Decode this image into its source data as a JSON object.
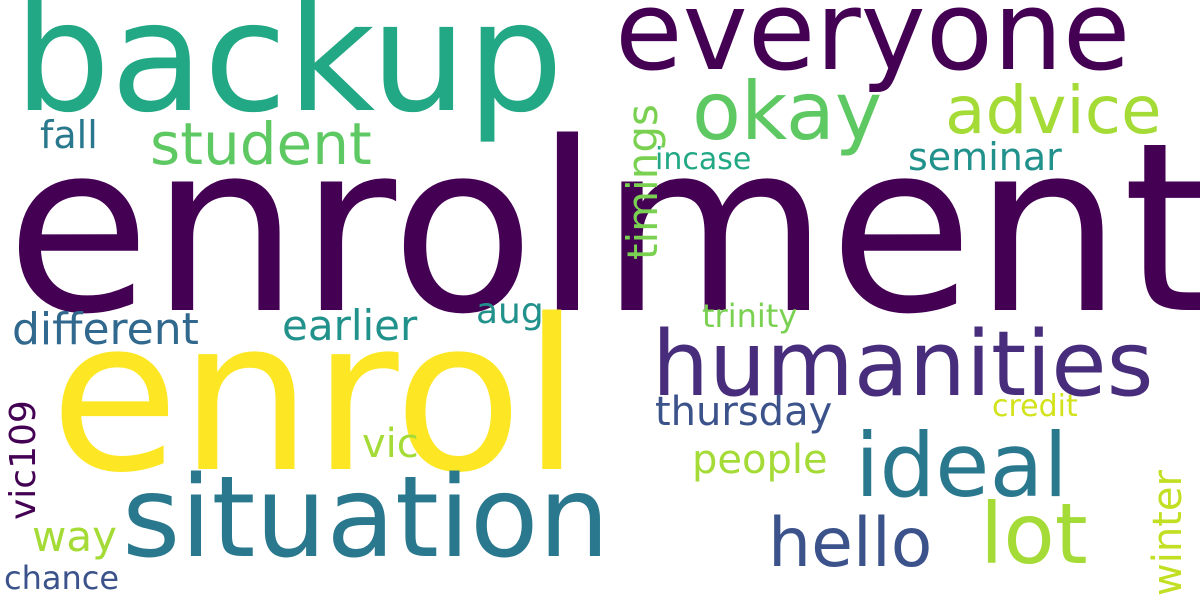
{
  "words": [
    {
      "id": "enrolment",
      "text": "enrolment",
      "color": "#440154"
    },
    {
      "id": "enrol",
      "text": "enrol",
      "color": "#fde725"
    },
    {
      "id": "backup",
      "text": "backup",
      "color": "#22a884"
    },
    {
      "id": "everyone",
      "text": "everyone",
      "color": "#440154"
    },
    {
      "id": "situation",
      "text": "situation",
      "color": "#2a788e"
    },
    {
      "id": "humanities",
      "text": "humanities",
      "color": "#472d7b"
    },
    {
      "id": "ideal",
      "text": "ideal",
      "color": "#2a788e"
    },
    {
      "id": "okay",
      "text": "okay",
      "color": "#5ec962"
    },
    {
      "id": "advice",
      "text": "advice",
      "color": "#a5db36"
    },
    {
      "id": "student",
      "text": "student",
      "color": "#5ec962"
    },
    {
      "id": "lot",
      "text": "lot",
      "color": "#a5db36"
    },
    {
      "id": "hello",
      "text": "hello",
      "color": "#3b528b"
    },
    {
      "id": "different",
      "text": "different",
      "color": "#31688e"
    },
    {
      "id": "earlier",
      "text": "earlier",
      "color": "#21918c"
    },
    {
      "id": "thursday",
      "text": "thursday",
      "color": "#3b528b"
    },
    {
      "id": "people",
      "text": "people",
      "color": "#a5db36"
    },
    {
      "id": "seminar",
      "text": "seminar",
      "color": "#21918c"
    },
    {
      "id": "timings",
      "text": "timings",
      "color": "#7ad151"
    },
    {
      "id": "fall",
      "text": "fall",
      "color": "#2a788e"
    },
    {
      "id": "vic109",
      "text": "vic109",
      "color": "#440154"
    },
    {
      "id": "vic",
      "text": "vic",
      "color": "#a5db36"
    },
    {
      "id": "winter",
      "text": "winter",
      "color": "#c2df23"
    },
    {
      "id": "way",
      "text": "way",
      "color": "#a5db36"
    },
    {
      "id": "chance",
      "text": "chance",
      "color": "#3b528b"
    },
    {
      "id": "incase",
      "text": "incase",
      "color": "#22a884"
    },
    {
      "id": "aug",
      "text": "aug",
      "color": "#21918c"
    },
    {
      "id": "trinity",
      "text": "trinity",
      "color": "#7ad151"
    },
    {
      "id": "credit",
      "text": "credit",
      "color": "#d2e21b"
    }
  ]
}
